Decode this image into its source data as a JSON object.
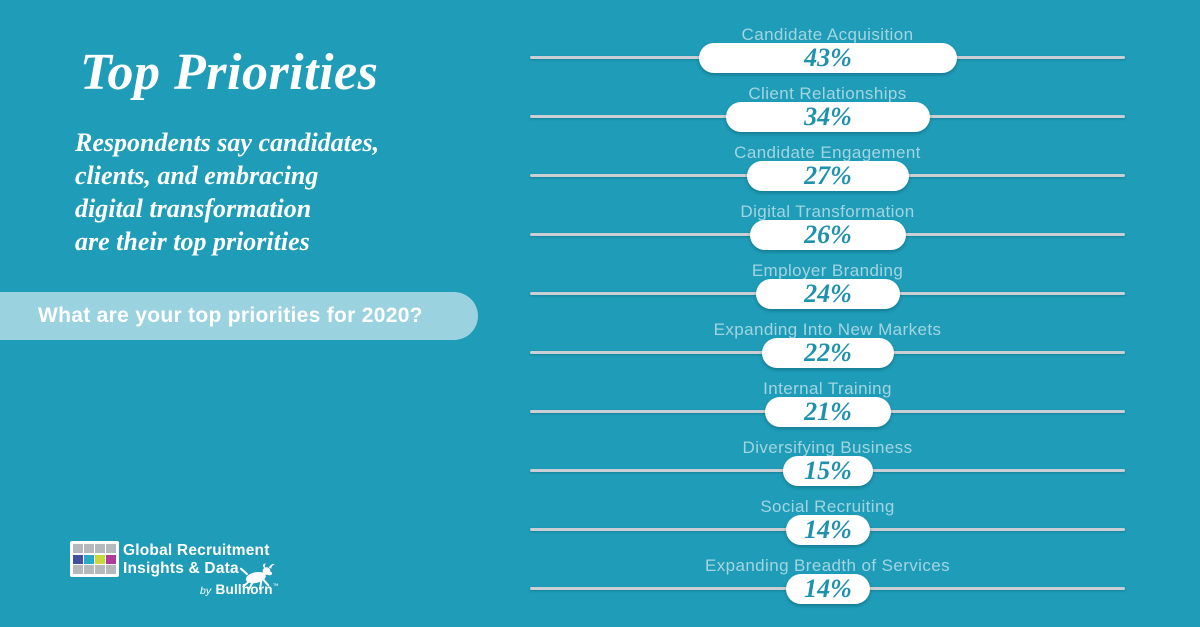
{
  "title": "Top Priorities",
  "subtitle_lines": [
    "Respondents say candidates,",
    "clients, and embracing",
    "digital transformation",
    "are their top priorities"
  ],
  "question_banner": "What are your top priorities for 2020?",
  "logo": {
    "line1": "Global Recruitment",
    "line2": "Insights & Data",
    "byline_prefix": "by",
    "byline_brand": "Bullhorn",
    "byline_tm": "™",
    "grid_cells": [
      "logo_gray",
      "logo_gray",
      "logo_gray",
      "logo_gray",
      "logo_indigo",
      "logo_teal",
      "logo_lime",
      "logo_magenta",
      "logo_gray",
      "logo_gray",
      "logo_gray",
      "logo_gray"
    ]
  },
  "colors": {
    "background": "#1e9cb8",
    "banner_bg": "#9ad2e0",
    "banner_text": "#ffffff",
    "title_text": "#ffffff",
    "row_label": "#a3d5e0",
    "row_line": "#c9cfd2",
    "pill_bg": "#ffffff",
    "pill_value": "#1e91ae",
    "logo_gray": "#b5b9bc",
    "logo_indigo": "#4350a2",
    "logo_teal": "#2aa9c7",
    "logo_lime": "#c8da3b",
    "logo_magenta": "#b13a9c"
  },
  "chart_data": {
    "type": "bar",
    "orientation": "horizontal",
    "style": "white pill centered on gray rule, pill width proportional to value",
    "title": "What are your top priorities for 2020?",
    "unit": "%",
    "categories": [
      "Candidate Acquisition",
      "Client Relationships",
      "Candidate Engagement",
      "Digital Transformation",
      "Employer Branding",
      "Expanding Into New Markets",
      "Internal Training",
      "Diversifying Business",
      "Social Recruiting",
      "Expanding Breadth of Services"
    ],
    "values": [
      43,
      34,
      27,
      26,
      24,
      22,
      21,
      15,
      14,
      14
    ],
    "value_labels": [
      "43%",
      "34%",
      "27%",
      "26%",
      "24%",
      "22%",
      "21%",
      "15%",
      "14%",
      "14%"
    ],
    "xlim": [
      0,
      100
    ],
    "grid": false,
    "legend": false
  }
}
